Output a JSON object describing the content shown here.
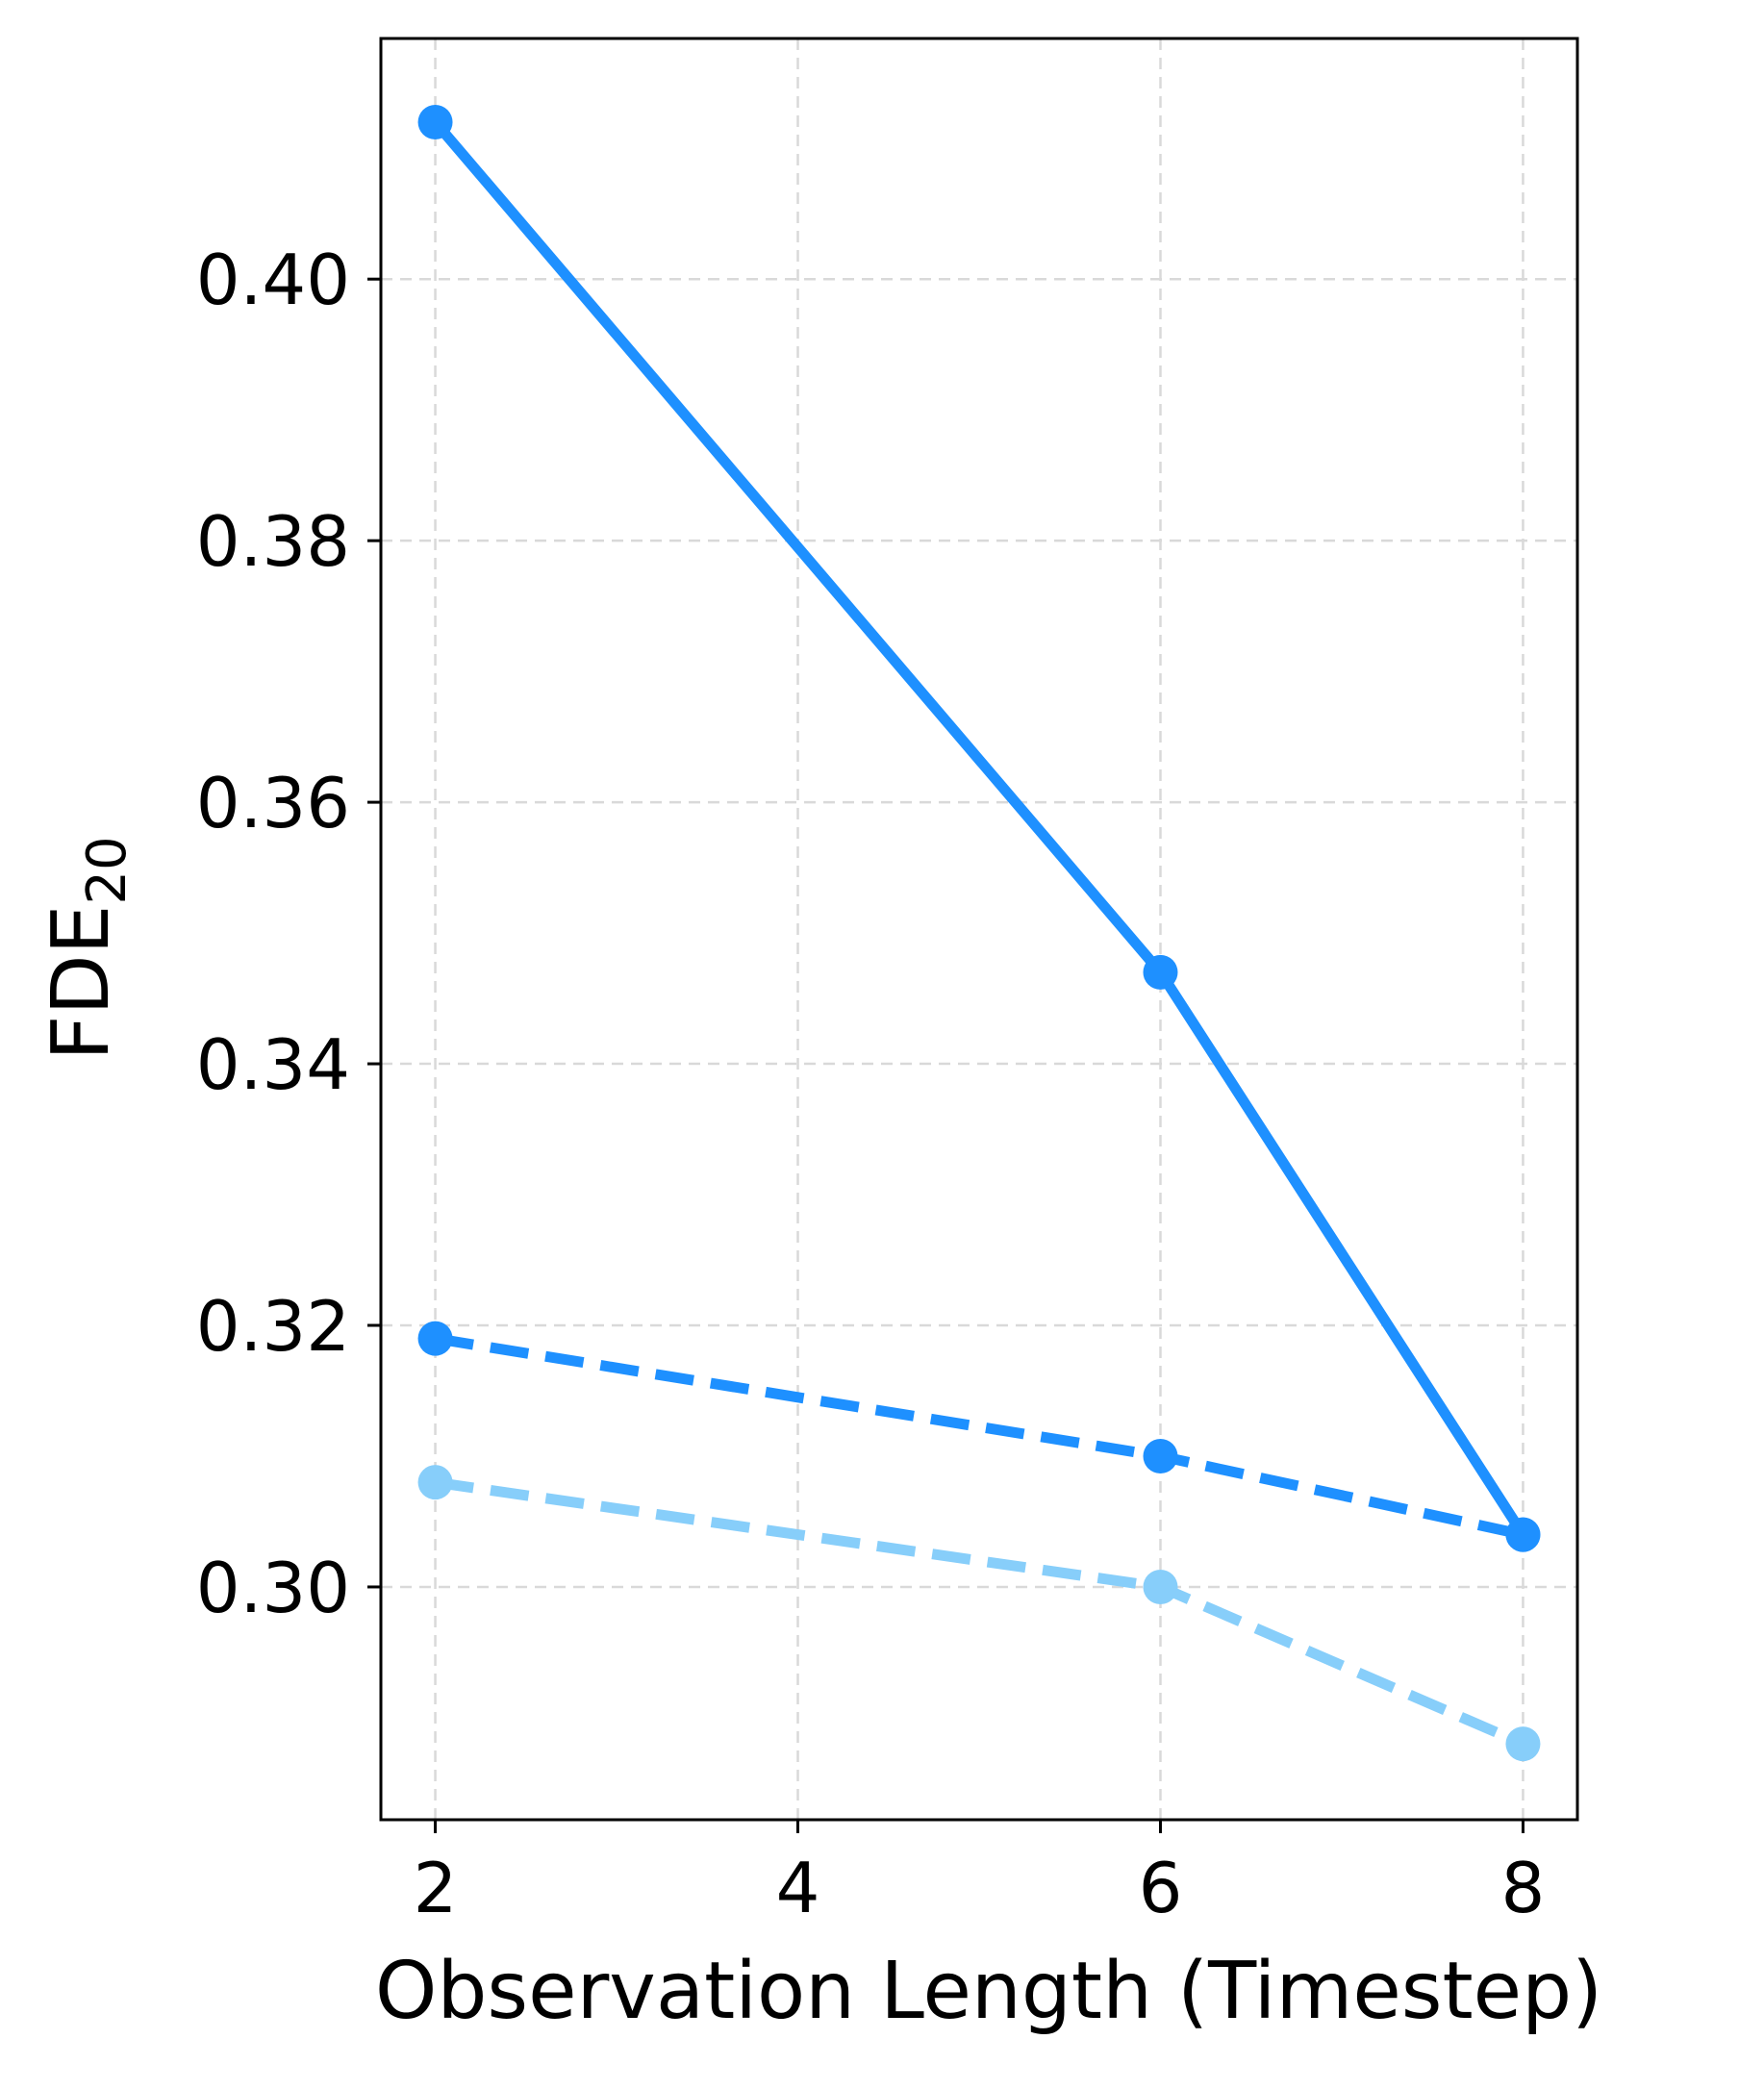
{
  "chart_data": {
    "type": "line",
    "xlabel": "Observation Length (Timestep)",
    "ylabel_main": "FDE",
    "ylabel_sub": "20",
    "xlim": [
      1.7,
      8.3
    ],
    "ylim": [
      0.2822,
      0.4184
    ],
    "xticks": [
      2,
      4,
      6,
      8
    ],
    "xtick_labels": [
      "2",
      "4",
      "6",
      "8"
    ],
    "yticks": [
      0.3,
      0.32,
      0.34,
      0.36,
      0.38,
      0.4
    ],
    "ytick_labels": [
      "0.30",
      "0.32",
      "0.34",
      "0.36",
      "0.38",
      "0.40"
    ],
    "grid": true,
    "legend": "none",
    "series": [
      {
        "x": [
          2,
          6,
          8
        ],
        "values": [
          0.412,
          0.347,
          0.304
        ],
        "color": "#1e90ff",
        "linestyle": "solid",
        "marker": "circle"
      },
      {
        "x": [
          2,
          6,
          8
        ],
        "values": [
          0.319,
          0.31,
          0.304
        ],
        "color": "#1e90ff",
        "linestyle": "dashed",
        "marker": "circle"
      },
      {
        "x": [
          2,
          6,
          8
        ],
        "values": [
          0.308,
          0.3,
          0.288
        ],
        "color": "#87cefa",
        "linestyle": "dashed",
        "marker": "circle"
      }
    ]
  }
}
